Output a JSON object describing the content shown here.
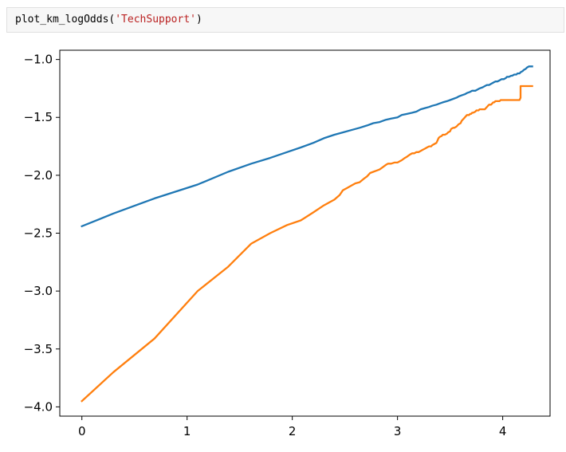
{
  "cell": {
    "code_prefix": "plot_km_logOdds(",
    "code_string": "'TechSupport'",
    "code_suffix": ")"
  },
  "chart_data": {
    "type": "line",
    "title": "",
    "xlabel": "",
    "ylabel": "",
    "xlim": [
      -0.21,
      4.45
    ],
    "ylim": [
      -4.08,
      -0.92
    ],
    "xticks": [
      0,
      1,
      2,
      3,
      4
    ],
    "xtick_labels": [
      "0",
      "1",
      "2",
      "3",
      "4"
    ],
    "yticks": [
      -1.0,
      -1.5,
      -2.0,
      -2.5,
      -3.0,
      -3.5,
      -4.0
    ],
    "ytick_labels": [
      "−1.0",
      "−1.5",
      "−2.0",
      "−2.5",
      "−3.0",
      "−3.5",
      "−4.0"
    ],
    "grid": false,
    "legend": "none",
    "series": [
      {
        "color": "#1f77b4",
        "x": [
          0,
          0.3,
          0.69,
          1.1,
          1.39,
          1.61,
          1.79,
          1.95,
          2.08,
          2.2,
          2.3,
          2.4,
          2.48,
          2.56,
          2.64,
          2.71,
          2.77,
          2.83,
          2.89,
          2.94,
          3.0,
          3.04,
          3.09,
          3.14,
          3.18,
          3.22,
          3.26,
          3.3,
          3.33,
          3.37,
          3.4,
          3.43,
          3.47,
          3.5,
          3.53,
          3.56,
          3.58,
          3.61,
          3.64,
          3.66,
          3.69,
          3.71,
          3.74,
          3.76,
          3.78,
          3.81,
          3.83,
          3.85,
          3.87,
          3.89,
          3.91,
          3.93,
          3.95,
          3.97,
          3.99,
          4.01,
          4.03,
          4.04,
          4.06,
          4.08,
          4.09,
          4.11,
          4.13,
          4.14,
          4.16,
          4.17,
          4.19,
          4.2,
          4.22,
          4.23,
          4.25,
          4.26,
          4.28
        ],
        "y": [
          -2.44,
          -2.33,
          -2.2,
          -2.08,
          -1.97,
          -1.9,
          -1.85,
          -1.8,
          -1.76,
          -1.72,
          -1.68,
          -1.65,
          -1.63,
          -1.61,
          -1.59,
          -1.57,
          -1.55,
          -1.54,
          -1.52,
          -1.51,
          -1.5,
          -1.48,
          -1.47,
          -1.46,
          -1.45,
          -1.43,
          -1.42,
          -1.41,
          -1.4,
          -1.39,
          -1.38,
          -1.37,
          -1.36,
          -1.35,
          -1.34,
          -1.33,
          -1.32,
          -1.31,
          -1.3,
          -1.29,
          -1.28,
          -1.27,
          -1.27,
          -1.26,
          -1.25,
          -1.24,
          -1.23,
          -1.22,
          -1.22,
          -1.21,
          -1.2,
          -1.19,
          -1.19,
          -1.18,
          -1.17,
          -1.17,
          -1.16,
          -1.15,
          -1.15,
          -1.14,
          -1.14,
          -1.13,
          -1.13,
          -1.12,
          -1.12,
          -1.11,
          -1.1,
          -1.09,
          -1.08,
          -1.07,
          -1.06,
          -1.06,
          -1.06
        ]
      },
      {
        "color": "#ff7f0e",
        "x": [
          0,
          0.3,
          0.69,
          1.1,
          1.39,
          1.61,
          1.79,
          1.95,
          2.08,
          2.2,
          2.3,
          2.4,
          2.45,
          2.48,
          2.52,
          2.56,
          2.6,
          2.64,
          2.68,
          2.71,
          2.74,
          2.77,
          2.8,
          2.83,
          2.86,
          2.89,
          2.91,
          2.94,
          2.97,
          3.0,
          3.02,
          3.04,
          3.07,
          3.09,
          3.12,
          3.14,
          3.16,
          3.18,
          3.2,
          3.22,
          3.24,
          3.26,
          3.28,
          3.3,
          3.32,
          3.33,
          3.35,
          3.37,
          3.39,
          3.4,
          3.42,
          3.43,
          3.45,
          3.47,
          3.48,
          3.5,
          3.51,
          3.53,
          3.54,
          3.56,
          3.57,
          3.58,
          3.6,
          3.61,
          3.63,
          3.64,
          3.65,
          3.66,
          3.68,
          3.69,
          3.7,
          3.71,
          3.72,
          3.74,
          3.75,
          3.76,
          3.77,
          3.78,
          3.79,
          3.81,
          3.82,
          3.83,
          3.84,
          3.85,
          3.86,
          3.87,
          3.88,
          3.89,
          3.9,
          3.91,
          3.92,
          3.93,
          3.94,
          3.95,
          3.96,
          3.97,
          3.98,
          3.99,
          4.0,
          4.01,
          4.02,
          4.03,
          4.04,
          4.05,
          4.06,
          4.07,
          4.08,
          4.09,
          4.1,
          4.11,
          4.12,
          4.13,
          4.14,
          4.15,
          4.16,
          4.17,
          4.17,
          4.18,
          4.19,
          4.2,
          4.28
        ],
        "y": [
          -3.95,
          -3.7,
          -3.41,
          -3.0,
          -2.79,
          -2.59,
          -2.5,
          -2.43,
          -2.39,
          -2.32,
          -2.26,
          -2.21,
          -2.17,
          -2.13,
          -2.11,
          -2.09,
          -2.07,
          -2.06,
          -2.03,
          -2.01,
          -1.98,
          -1.97,
          -1.96,
          -1.95,
          -1.93,
          -1.91,
          -1.9,
          -1.9,
          -1.89,
          -1.89,
          -1.88,
          -1.87,
          -1.85,
          -1.84,
          -1.82,
          -1.81,
          -1.81,
          -1.8,
          -1.8,
          -1.79,
          -1.78,
          -1.77,
          -1.76,
          -1.75,
          -1.75,
          -1.74,
          -1.73,
          -1.72,
          -1.68,
          -1.67,
          -1.66,
          -1.65,
          -1.65,
          -1.64,
          -1.63,
          -1.62,
          -1.6,
          -1.59,
          -1.59,
          -1.58,
          -1.57,
          -1.56,
          -1.55,
          -1.53,
          -1.51,
          -1.5,
          -1.49,
          -1.48,
          -1.48,
          -1.47,
          -1.47,
          -1.46,
          -1.46,
          -1.45,
          -1.44,
          -1.44,
          -1.44,
          -1.43,
          -1.43,
          -1.43,
          -1.43,
          -1.43,
          -1.42,
          -1.41,
          -1.4,
          -1.39,
          -1.39,
          -1.39,
          -1.38,
          -1.37,
          -1.37,
          -1.36,
          -1.36,
          -1.36,
          -1.36,
          -1.36,
          -1.35,
          -1.35,
          -1.35,
          -1.35,
          -1.35,
          -1.35,
          -1.35,
          -1.35,
          -1.35,
          -1.35,
          -1.35,
          -1.35,
          -1.35,
          -1.35,
          -1.35,
          -1.35,
          -1.35,
          -1.35,
          -1.35,
          -1.33,
          -1.23,
          -1.23,
          -1.23,
          -1.23,
          -1.23
        ]
      }
    ]
  }
}
